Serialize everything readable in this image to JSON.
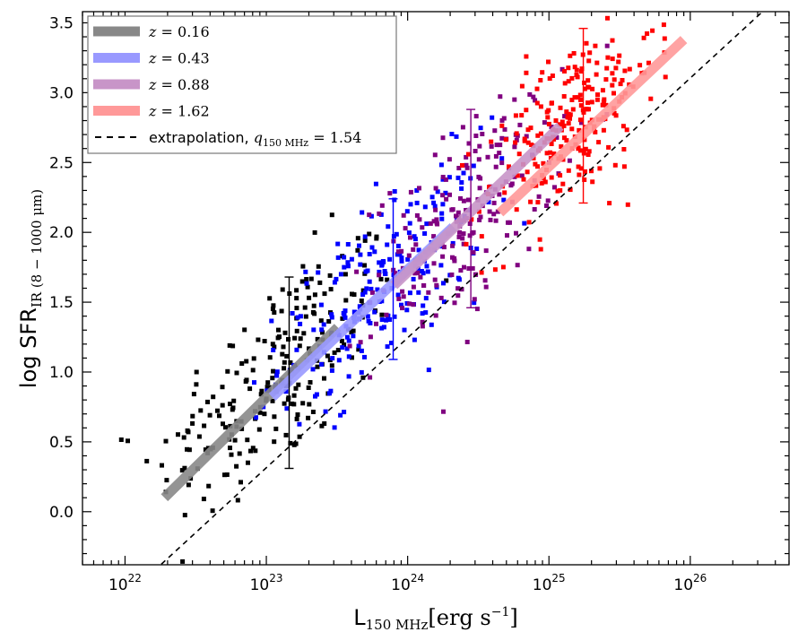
{
  "chart_data": {
    "type": "scatter",
    "title": "",
    "xlabel": "L",
    "xlabel_sub": "150 MHz",
    "xlabel_units": "[erg s",
    "xlabel_units_sup": "−1",
    "xlabel_units_close": "]",
    "ylabel": "log SFR",
    "ylabel_sub": "IR (8 − 1000 μm)",
    "x_scale": "log",
    "xlim": [
      5e+21,
      5e+26
    ],
    "ylim": [
      -0.38,
      3.58
    ],
    "x_ticks": [
      {
        "exp": 22,
        "label_base": "10",
        "label_exp": "22"
      },
      {
        "exp": 23,
        "label_base": "10",
        "label_exp": "23"
      },
      {
        "exp": 24,
        "label_base": "10",
        "label_exp": "24"
      },
      {
        "exp": 25,
        "label_base": "10",
        "label_exp": "25"
      },
      {
        "exp": 26,
        "label_base": "10",
        "label_exp": "26"
      }
    ],
    "y_ticks": [
      "0.0",
      "0.5",
      "1.0",
      "1.5",
      "2.0",
      "2.5",
      "3.0",
      "3.5"
    ],
    "grid": false,
    "legend_position": "top-left",
    "legend": [
      {
        "label_var": "z",
        "label_eq": " = ",
        "label_val": "0.16",
        "color": "#888888",
        "style": "thick"
      },
      {
        "label_var": "z",
        "label_eq": " = ",
        "label_val": "0.43",
        "color": "#9999ff",
        "style": "thick"
      },
      {
        "label_var": "z",
        "label_eq": " = ",
        "label_val": "0.88",
        "color": "#c895c8",
        "style": "thick"
      },
      {
        "label_var": "z",
        "label_eq": " = ",
        "label_val": "1.62",
        "color": "#ff9999",
        "style": "thick"
      },
      {
        "label_text": "extrapolation, ",
        "label_var": "q",
        "label_sub": "150 MHz",
        "label_eq": " = ",
        "label_val": "1.54",
        "color": "#000000",
        "style": "dashed"
      }
    ],
    "extrapolation_line": {
      "x": [
        1e+22,
        4.5e+26
      ],
      "y": [
        -0.615,
        3.712
      ]
    },
    "fit_lines": [
      {
        "name": "z = 0.16",
        "color": "#888888",
        "x": [
          1.9e+22,
          3.2e+23
        ],
        "y": [
          0.1,
          1.32
        ]
      },
      {
        "name": "z = 0.43",
        "color": "#9999ff",
        "x": [
          1.1e+23,
          2.1e+24
        ],
        "y": [
          0.82,
          2.04
        ]
      },
      {
        "name": "z = 0.88",
        "color": "#c895c8",
        "x": [
          8e+23,
          1.2e+25
        ],
        "y": [
          1.62,
          2.76
        ]
      },
      {
        "name": "z = 1.62",
        "color": "#ff9999",
        "x": [
          4.5e+24,
          9e+25
        ],
        "y": [
          2.14,
          3.38
        ]
      }
    ],
    "error_bars": [
      {
        "color": "#000000",
        "x": 1.45e+23,
        "y": 0.99,
        "ylow": 0.31,
        "yhigh": 1.68
      },
      {
        "color": "#0000ff",
        "x": 7.9e+23,
        "y": 1.66,
        "ylow": 1.09,
        "yhigh": 2.24
      },
      {
        "color": "#800080",
        "x": 2.8e+24,
        "y": 2.17,
        "ylow": 1.46,
        "yhigh": 2.88
      },
      {
        "color": "#ff0000",
        "x": 1.75e+25,
        "y": 2.84,
        "ylow": 2.21,
        "yhigh": 3.46
      }
    ],
    "series": [
      {
        "name": "z = 0.16",
        "color": "#000000",
        "center_logx": 23.08,
        "center_y": 0.98,
        "slope": 0.78,
        "spread_x": 0.43,
        "spread_y": 0.35,
        "count": 240
      },
      {
        "name": "z = 0.43",
        "color": "#0000ff",
        "center_logx": 23.82,
        "center_y": 1.62,
        "slope": 0.78,
        "spread_x": 0.36,
        "spread_y": 0.3,
        "count": 230
      },
      {
        "name": "z = 0.88",
        "color": "#800080",
        "center_logx": 24.42,
        "center_y": 2.12,
        "slope": 0.78,
        "spread_x": 0.33,
        "spread_y": 0.33,
        "count": 210
      },
      {
        "name": "z = 1.62",
        "color": "#ff0000",
        "center_logx": 25.15,
        "center_y": 2.78,
        "slope": 0.78,
        "spread_x": 0.3,
        "spread_y": 0.3,
        "count": 240
      }
    ]
  }
}
